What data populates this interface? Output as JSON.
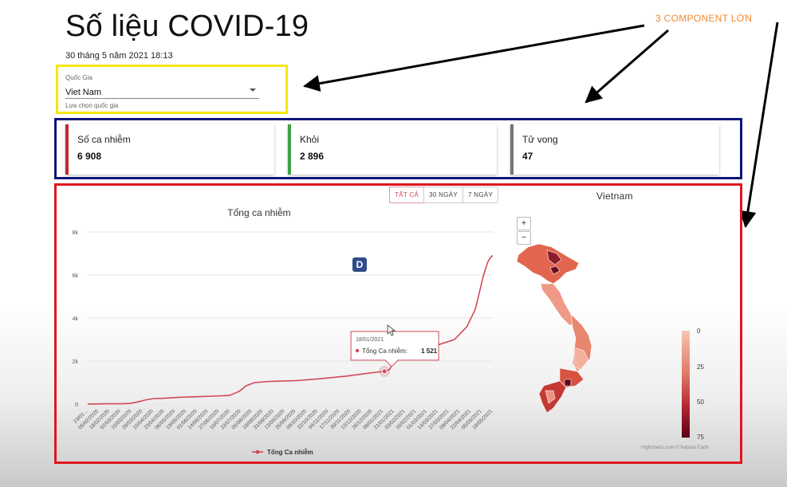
{
  "header": {
    "title": "Số liệu COVID-19",
    "datetime": "30 tháng 5 năm 2021 18:13"
  },
  "annotation": {
    "text": "3 COMPONENT LỚN"
  },
  "country_select": {
    "label": "Quốc Gia",
    "value": "Viet Nam",
    "helper": "Lựa chọn quốc gia"
  },
  "cards": [
    {
      "label": "Số ca nhiễm",
      "value": "6 908",
      "color": "#c62828"
    },
    {
      "label": "Khỏi",
      "value": "2 896",
      "color": "#43a047"
    },
    {
      "label": "Tử vong",
      "value": "47",
      "color": "#757575"
    }
  ],
  "range_buttons": [
    "TẤT CẢ",
    "30 NGÀY",
    "7 NGÀY"
  ],
  "badge": "D",
  "chart_data": {
    "type": "line",
    "title": "Tổng ca nhiễm",
    "xlabel": "",
    "ylabel": "",
    "ylim": [
      0,
      8000
    ],
    "y_ticks": [
      0,
      2000,
      4000,
      6000,
      8000
    ],
    "y_tick_labels": [
      "0",
      "2k",
      "4k",
      "6k",
      "8k"
    ],
    "x_tick_labels": [
      "23/01...",
      "05/02/2020",
      "18/02/2020",
      "02/03/2020",
      "15/03/2020",
      "28/03/2020",
      "10/04/2020",
      "23/04/2020",
      "06/05/2020",
      "19/05/2020",
      "01/06/2020",
      "14/06/2020",
      "27/06/2020",
      "10/07/2020",
      "23/07/2020",
      "05/08/2020",
      "18/08/2020",
      "31/08/2020",
      "13/09/2020",
      "26/09/2020",
      "09/10/2020",
      "22/10/2020",
      "04/11/2020",
      "17/11/2020",
      "30/11/2020",
      "13/12/2020",
      "26/12/2020",
      "08/01/2021",
      "21/01/2021",
      "03/02/2021",
      "16/02/2021",
      "01/03/2021",
      "14/03/2021",
      "27/03/2021",
      "09/04/2021",
      "22/04/2021",
      "05/05/2021",
      "18/05/2021"
    ],
    "series": [
      {
        "name": "Tổng Ca nhiễm",
        "color": "#d24a57",
        "x_days": [
          0,
          20,
          40,
          50,
          60,
          70,
          80,
          90,
          110,
          150,
          170,
          182,
          190,
          200,
          220,
          250,
          280,
          310,
          330,
          350,
          356,
          362,
          372,
          385,
          400,
          420,
          440,
          455,
          465,
          470,
          475,
          480,
          483,
          486
        ],
        "y": [
          2,
          16,
          16,
          30,
          100,
          200,
          260,
          270,
          320,
          370,
          400,
          600,
          850,
          1000,
          1060,
          1090,
          1180,
          1300,
          1400,
          1500,
          1521,
          1600,
          2300,
          2600,
          2650,
          2750,
          3000,
          3600,
          4400,
          5200,
          6000,
          6600,
          6800,
          6908
        ]
      }
    ],
    "tooltip": {
      "date": "18/01/2021",
      "series": "Tổng Ca nhiễm",
      "value": "1 521",
      "x_day": 356,
      "y": 1521
    },
    "legend": {
      "position": "bottom-center"
    }
  },
  "map": {
    "title": "Vietnam",
    "zoom_in": "+",
    "zoom_out": "−",
    "color_axis": {
      "min": "0",
      "ticks": [
        "0",
        "25",
        "50",
        "75"
      ]
    },
    "credits": "Highcharts.com © Natural Earth"
  }
}
